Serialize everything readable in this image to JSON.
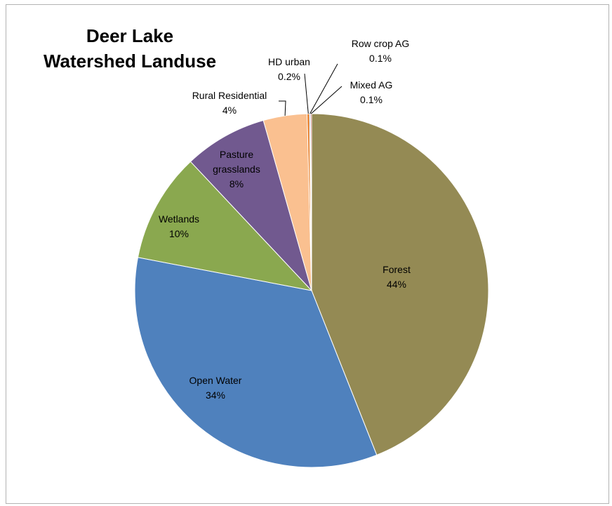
{
  "chart_data": {
    "type": "pie",
    "title_lines": [
      "Deer Lake",
      "Watershed Landuse"
    ],
    "start_angle_deg": 0,
    "direction": "clockwise",
    "legend": "none",
    "slices": [
      {
        "name": "Forest",
        "label_lines": [
          "Forest"
        ],
        "value_label": "44%",
        "value": 44.0,
        "color": "#948a54"
      },
      {
        "name": "Open Water",
        "label_lines": [
          "Open Water"
        ],
        "value_label": "34%",
        "value": 34.0,
        "color": "#4f81bd"
      },
      {
        "name": "Wetlands",
        "label_lines": [
          "Wetlands"
        ],
        "value_label": "10%",
        "value": 10.0,
        "color": "#8aa84f"
      },
      {
        "name": "Pasture grasslands",
        "label_lines": [
          "Pasture",
          "grasslands"
        ],
        "value_label": "8%",
        "value": 7.6,
        "color": "#71598f"
      },
      {
        "name": "Rural Residential",
        "label_lines": [
          "Rural Residential"
        ],
        "value_label": "4%",
        "value": 4.0,
        "color": "#fac090"
      },
      {
        "name": "HD urban",
        "label_lines": [
          "HD urban"
        ],
        "value_label": "0.2%",
        "value": 0.2,
        "color": "#e46c0a"
      },
      {
        "name": "Row crop AG",
        "label_lines": [
          "Row crop AG"
        ],
        "value_label": "0.1%",
        "value": 0.1,
        "color": "#95b3d7"
      },
      {
        "name": "Mixed AG",
        "label_lines": [
          "Mixed AG"
        ],
        "value_label": "0.1%",
        "value": 0.1,
        "color": "#c0504d"
      }
    ]
  }
}
